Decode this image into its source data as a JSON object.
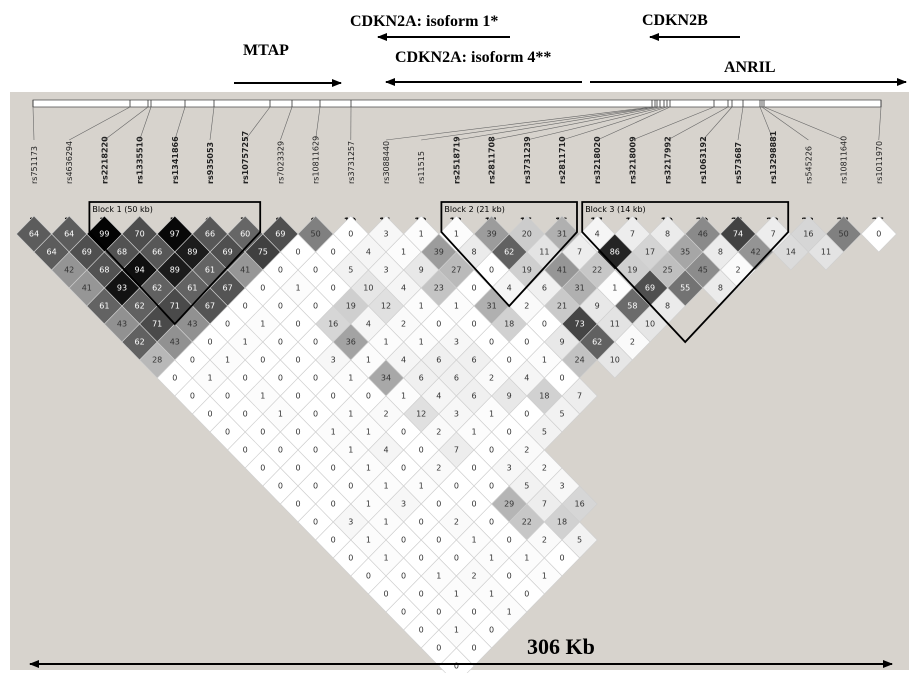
{
  "genes": [
    {
      "name": "MTAP",
      "arrow": "right"
    },
    {
      "name": "CDKN2A: isoform 1*",
      "arrow": "left"
    },
    {
      "name": "CDKN2A: isoform 4**",
      "arrow": "left"
    },
    {
      "name": "CDKN2B",
      "arrow": "left"
    },
    {
      "name": "ANRIL",
      "arrow": "right"
    }
  ],
  "snps": [
    {
      "index": "1",
      "id": "rs751173",
      "bold": false
    },
    {
      "index": "2",
      "id": "rs4636294",
      "bold": false
    },
    {
      "index": "3",
      "id": "rs2218220",
      "bold": true
    },
    {
      "index": "4",
      "id": "rs1335510",
      "bold": true
    },
    {
      "index": "5",
      "id": "rs1341866",
      "bold": true
    },
    {
      "index": "6",
      "id": "rs935053",
      "bold": true
    },
    {
      "index": "7",
      "id": "rs10757257",
      "bold": true
    },
    {
      "index": "8",
      "id": "rs7023329",
      "bold": false
    },
    {
      "index": "9",
      "id": "rs10811629",
      "bold": false
    },
    {
      "index": "10",
      "id": "rs3731257",
      "bold": false
    },
    {
      "index": "11",
      "id": "rs3088440",
      "bold": false
    },
    {
      "index": "12",
      "id": "rs11515",
      "bold": false
    },
    {
      "index": "13",
      "id": "rs2518719",
      "bold": true
    },
    {
      "index": "14",
      "id": "rs2811708",
      "bold": true
    },
    {
      "index": "15",
      "id": "rs3731239",
      "bold": true
    },
    {
      "index": "16",
      "id": "rs2811710",
      "bold": true
    },
    {
      "index": "17",
      "id": "rs3218020",
      "bold": true
    },
    {
      "index": "18",
      "id": "rs3218009",
      "bold": true
    },
    {
      "index": "19",
      "id": "rs3217992",
      "bold": true
    },
    {
      "index": "20",
      "id": "rs1063192",
      "bold": true
    },
    {
      "index": "21",
      "id": "rs573687",
      "bold": true
    },
    {
      "index": "22",
      "id": "rs13298881",
      "bold": true
    },
    {
      "index": "23",
      "id": "rs545226",
      "bold": false
    },
    {
      "index": "24",
      "id": "rs10811640",
      "bold": false
    },
    {
      "index": "25",
      "id": "rs1011970",
      "bold": false
    }
  ],
  "blocks": [
    {
      "label": "Block 1 (50 kb)",
      "from": 3,
      "to": 7
    },
    {
      "label": "Block 2 (21 kb)",
      "from": 13,
      "to": 16
    },
    {
      "label": "Block 3 (14 kb)",
      "from": 17,
      "to": 22
    }
  ],
  "scale_label": "306 Kb",
  "ld_rows": [
    [
      64,
      64,
      99,
      70,
      97,
      66,
      60,
      69,
      50,
      0,
      3,
      1,
      1,
      39,
      20,
      31,
      4,
      7,
      8,
      46,
      74,
      7,
      16,
      50,
      0
    ],
    [
      64,
      69,
      68,
      66,
      89,
      69,
      75,
      0,
      0,
      4,
      1,
      39,
      8,
      62,
      11,
      7,
      86,
      17,
      35,
      8,
      42,
      14,
      11
    ],
    [
      42,
      68,
      94,
      89,
      61,
      41,
      0,
      0,
      5,
      3,
      9,
      27,
      0,
      19,
      41,
      22,
      19,
      25,
      45,
      2
    ],
    [
      41,
      93,
      62,
      61,
      67,
      0,
      1,
      0,
      10,
      4,
      23,
      0,
      4,
      6,
      31,
      1,
      69,
      55,
      8
    ],
    [
      61,
      62,
      71,
      67,
      0,
      0,
      0,
      19,
      12,
      1,
      1,
      31,
      2,
      21,
      9,
      58,
      8
    ],
    [
      43,
      71,
      43,
      0,
      1,
      0,
      16,
      4,
      2,
      0,
      0,
      18,
      0,
      73,
      11,
      10
    ],
    [
      62,
      43,
      0,
      1,
      0,
      0,
      36,
      1,
      1,
      3,
      0,
      0,
      9,
      62,
      2
    ],
    [
      28,
      0,
      1,
      0,
      0,
      3,
      1,
      4,
      6,
      6,
      0,
      1,
      24,
      10
    ],
    [
      0,
      1,
      0,
      0,
      0,
      1,
      34,
      6,
      6,
      2,
      4,
      0
    ],
    [
      0,
      0,
      1,
      0,
      0,
      0,
      1,
      4,
      6,
      9,
      18,
      7
    ],
    [
      0,
      0,
      1,
      0,
      1,
      2,
      12,
      3,
      1,
      0,
      5
    ],
    [
      0,
      0,
      0,
      1,
      1,
      0,
      2,
      1,
      0,
      5
    ],
    [
      0,
      0,
      0,
      1,
      4,
      0,
      7,
      0,
      2
    ],
    [
      0,
      0,
      0,
      1,
      0,
      2,
      0,
      3,
      2
    ],
    [
      0,
      0,
      0,
      1,
      1,
      0,
      0,
      5,
      3
    ],
    [
      0,
      0,
      1,
      3,
      0,
      0,
      29,
      7,
      16
    ],
    [
      0,
      3,
      1,
      0,
      2,
      0,
      22,
      18
    ],
    [
      0,
      1,
      0,
      0,
      1,
      0,
      2,
      5
    ],
    [
      0,
      1,
      0,
      0,
      1,
      1,
      0
    ],
    [
      0,
      0,
      1,
      2,
      0,
      1
    ],
    [
      0,
      0,
      1,
      1,
      0
    ],
    [
      0,
      0,
      0,
      1
    ],
    [
      0,
      1,
      0
    ],
    [
      0,
      0
    ],
    [
      0
    ]
  ]
}
